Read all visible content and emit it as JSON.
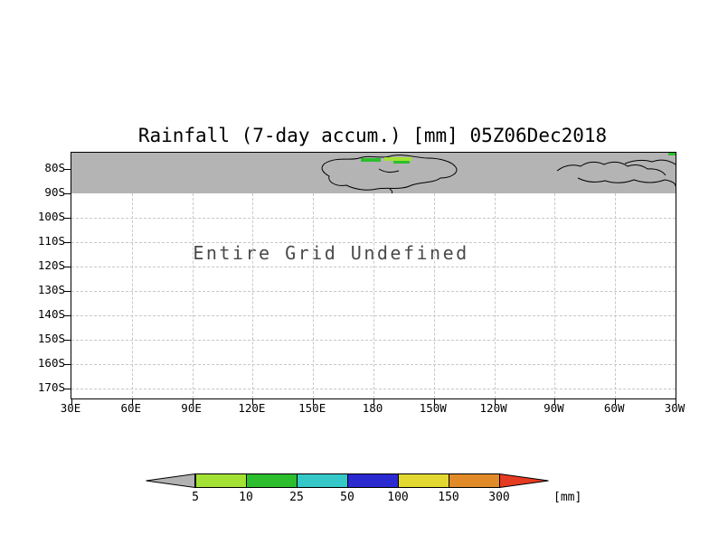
{
  "chart_data": {
    "type": "heatmap",
    "title": "Rainfall (7-day accum.) [mm] 05Z06Dec2018",
    "xlabel": "",
    "ylabel": "",
    "x_tick_labels": [
      "30E",
      "60E",
      "90E",
      "120E",
      "150E",
      "180",
      "150W",
      "120W",
      "90W",
      "60W",
      "30W"
    ],
    "y_tick_labels": [
      "80S",
      "90S",
      "100S",
      "110S",
      "120S",
      "130S",
      "140S",
      "150S",
      "160S",
      "170S"
    ],
    "values": [],
    "annotation": "Entire Grid Undefined",
    "grid": "dashed",
    "legend": {
      "position": "bottom",
      "unit_label": "[mm]",
      "thresholds": [
        5,
        10,
        25,
        50,
        100,
        150,
        300
      ],
      "color_names": [
        "gray",
        "yellow-green",
        "green",
        "cyan",
        "blue",
        "yellow",
        "orange",
        "red"
      ]
    }
  },
  "colors": {
    "shade_band": "#b4b4b4",
    "gridline": "#c8c8c8",
    "coastline": "#000000",
    "rain_light": "#a3e135",
    "rain_green": "#2dbe2d",
    "legend_arrow_left": "#b2b2b2",
    "legend_segments": [
      "#a3e135",
      "#2dbe2d",
      "#35c8c8",
      "#2a2ad0",
      "#e3d832",
      "#e08b28"
    ],
    "legend_arrow_right": "#e63b23"
  }
}
